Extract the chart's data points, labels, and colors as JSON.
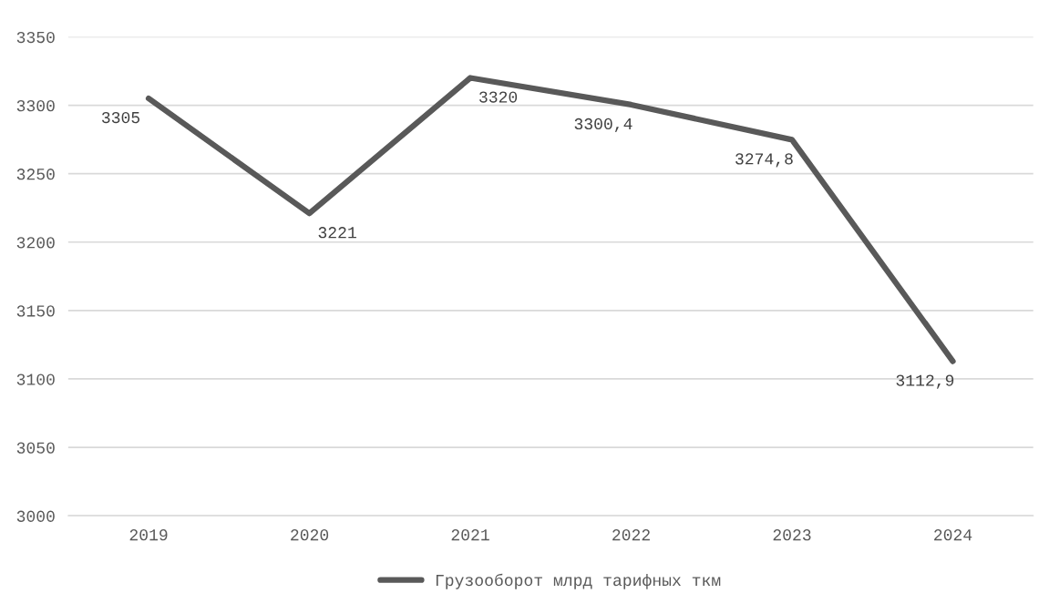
{
  "chart_data": {
    "type": "line",
    "categories": [
      "2019",
      "2020",
      "2021",
      "2022",
      "2023",
      "2024"
    ],
    "series": [
      {
        "name": "Грузооборот млрд тарифных ткм",
        "color": "#595959",
        "values": [
          3305,
          3221,
          3320,
          3300.4,
          3274.8,
          3112.9
        ],
        "value_labels": [
          "3305",
          "3221",
          "3320",
          "3300,4",
          "3274,8",
          "3112,9"
        ]
      }
    ],
    "ylim": [
      3000,
      3350
    ],
    "yticks": [
      3000,
      3050,
      3100,
      3150,
      3200,
      3250,
      3300,
      3350
    ],
    "grid": "y",
    "legend": "bottom",
    "marker": "none",
    "line_style": "solid"
  }
}
